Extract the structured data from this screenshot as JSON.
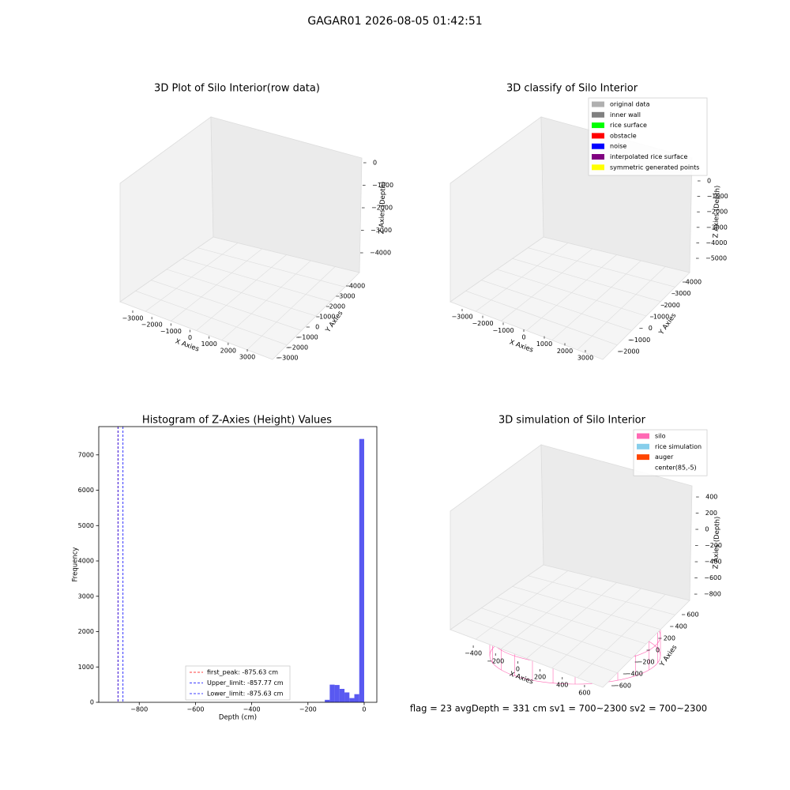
{
  "title": "GAGAR01 2026-08-05 01:42:51",
  "footer": "flag = 23  avgDepth = 331 cm  sv1 = 700~2300  sv2 = 700~2300",
  "chart_data": [
    {
      "type": "scatter3d",
      "title": "3D Plot of Silo Interior(row data)",
      "xaxis": {
        "label": "X Axies",
        "lim": [
          -3500,
          3500
        ],
        "ticks": [
          {
            "value": -3000,
            "label": "−3000"
          },
          {
            "value": -2000,
            "label": "−2000"
          },
          {
            "value": -1000,
            "label": "−1000"
          },
          0,
          1000,
          2000,
          3000
        ]
      },
      "yaxis": {
        "label": "Y Axies",
        "lim": [
          -3500,
          4500
        ],
        "ticks": [
          {
            "value": -3000,
            "label": "−3000"
          },
          {
            "value": -2000,
            "label": "−2000"
          },
          {
            "value": -1000,
            "label": "−1000"
          },
          0,
          1000,
          2000,
          3000,
          4000
        ]
      },
      "zaxis": {
        "label": "Z Axies (Depth)",
        "lim": [
          -4500,
          500
        ],
        "ticks": [
          0,
          {
            "value": -1000,
            "label": "−1000"
          },
          {
            "value": -2000,
            "label": "−2000"
          },
          {
            "value": -3000,
            "label": "−3000"
          },
          {
            "value": -4000,
            "label": "−4000"
          }
        ]
      }
    },
    {
      "type": "scatter3d",
      "title": "3D classify of Silo Interior",
      "xaxis": {
        "label": "X Axies",
        "lim": [
          -3500,
          3500
        ],
        "ticks": [
          {
            "value": -3000,
            "label": "−3000"
          },
          {
            "value": -2000,
            "label": "−2000"
          },
          {
            "value": -1000,
            "label": "−1000"
          },
          0,
          1000,
          2000,
          3000
        ]
      },
      "yaxis": {
        "label": "Y Axies",
        "lim": [
          -2500,
          4500
        ],
        "ticks": [
          {
            "value": -2000,
            "label": "−2000"
          },
          {
            "value": -1000,
            "label": "−1000"
          },
          0,
          1000,
          2000,
          3000,
          4000
        ]
      },
      "zaxis": {
        "label": "Z Axies (Depth)",
        "lim": [
          -5500,
          500
        ],
        "ticks": [
          0,
          {
            "value": -1000,
            "label": "−1000"
          },
          {
            "value": -2000,
            "label": "−2000"
          },
          {
            "value": -3000,
            "label": "−3000"
          },
          {
            "value": -4000,
            "label": "−4000"
          },
          {
            "value": -5000,
            "label": "−5000"
          }
        ]
      },
      "legend": [
        {
          "name": "original data",
          "color": "#b0b0b0"
        },
        {
          "name": "inner wall",
          "color": "#808080"
        },
        {
          "name": "rice surface",
          "color": "#00ff00"
        },
        {
          "name": "obstacle",
          "color": "#ff0000"
        },
        {
          "name": "noise",
          "color": "#0000ff"
        },
        {
          "name": "interpolated rice surface",
          "color": "#800080"
        },
        {
          "name": "symmetric generated points",
          "color": "#ffff00"
        }
      ]
    },
    {
      "type": "histogram",
      "title": "Histogram of Z-Axies (Height) Values",
      "xlabel": "Depth (cm)",
      "ylabel": "Frequency",
      "bins": [
        -157.5,
        -140,
        -122.5,
        -105,
        -87.5,
        -70,
        -52.5,
        -35,
        -17.5,
        0
      ],
      "values": [
        10,
        70,
        500,
        490,
        380,
        280,
        120,
        230,
        7450
      ],
      "color": "#5050f0",
      "xlim": [
        -944,
        45
      ],
      "xticks": [
        {
          "value": -800,
          "label": "−800"
        },
        {
          "value": -600,
          "label": "−600"
        },
        {
          "value": -400,
          "label": "−400"
        },
        {
          "value": -200,
          "label": "−200"
        },
        0
      ],
      "ylim": [
        0,
        7800
      ],
      "yticks": [
        0,
        1000,
        2000,
        3000,
        4000,
        5000,
        6000,
        7000
      ],
      "lines": [
        {
          "name": "first_peak: -875.63 cm",
          "value": -875.63,
          "color": "#ff0000"
        },
        {
          "name": "Upper_limit: -857.77 cm",
          "value": -857.77,
          "color": "#0000ff"
        },
        {
          "name": "Lower_limit: -875.63 cm",
          "value": -875.63,
          "color": "#0000ff"
        }
      ],
      "legend": "lower center"
    },
    {
      "type": "surface3d",
      "title": "3D simulation of Silo Interior",
      "xaxis": {
        "label": "X Axies",
        "lim": [
          -500,
          700
        ],
        "ticks": [
          {
            "value": -400,
            "label": "−400"
          },
          {
            "value": -200,
            "label": "−200"
          },
          0,
          200,
          400,
          600
        ]
      },
      "yaxis": {
        "label": "Y Axies",
        "lim": [
          -700,
          700
        ],
        "ticks": [
          {
            "value": -600,
            "label": "−600"
          },
          {
            "value": -400,
            "label": "−400"
          },
          {
            "value": -200,
            "label": "−200"
          },
          0,
          200,
          400,
          600
        ]
      },
      "zaxis": {
        "label": "Z Axies (Depth)",
        "lim": [
          -900,
          500
        ],
        "ticks": [
          400,
          200,
          0,
          {
            "value": -200,
            "label": "−200"
          },
          {
            "value": -400,
            "label": "−400"
          },
          {
            "value": -600,
            "label": "−600"
          },
          {
            "value": -800,
            "label": "−800"
          }
        ]
      },
      "legend": [
        {
          "name": "silo",
          "color": "#ff69b4"
        },
        {
          "name": "rice simulation",
          "color": "#87ceeb"
        },
        {
          "name": "auger",
          "color": "#ff4500"
        },
        {
          "name": "center(85,-5)",
          "color": "#ffffff"
        }
      ]
    }
  ]
}
